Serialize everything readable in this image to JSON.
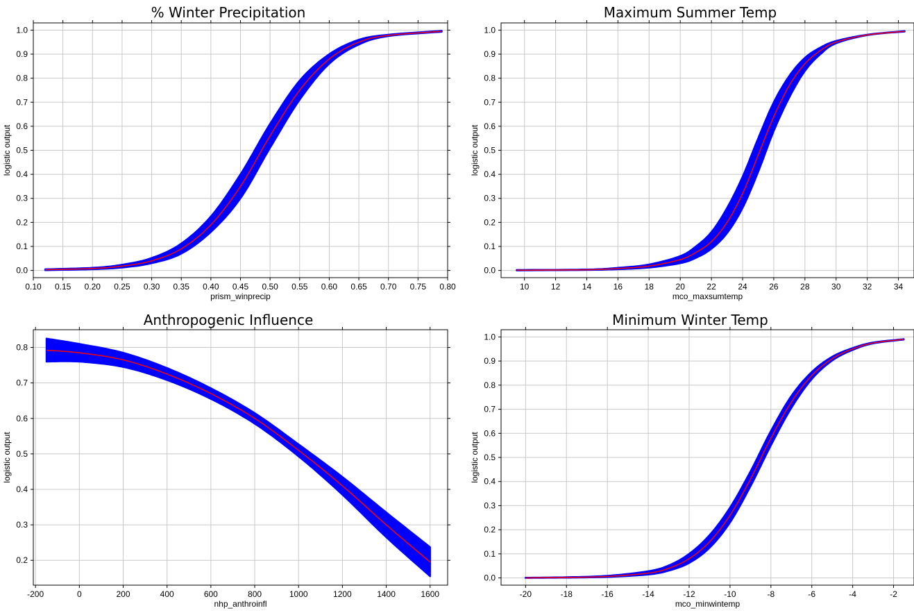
{
  "chart_data": [
    {
      "type": "line",
      "title": "% Winter Precipitation",
      "xlabel": "prism_winprecip",
      "ylabel": "logistic output",
      "xlim": [
        0.1,
        0.8
      ],
      "ylim": [
        -0.03,
        1.03
      ],
      "xticks": [
        "0.10",
        "0.15",
        "0.20",
        "0.25",
        "0.30",
        "0.35",
        "0.40",
        "0.45",
        "0.50",
        "0.55",
        "0.60",
        "0.65",
        "0.70",
        "0.75",
        "0.80"
      ],
      "yticks": [
        "0.0",
        "0.1",
        "0.2",
        "0.3",
        "0.4",
        "0.5",
        "0.6",
        "0.7",
        "0.8",
        "0.9",
        "1.0"
      ],
      "grid": true,
      "series": [
        {
          "role": "mean",
          "color": "#ff0000",
          "x": [
            0.12,
            0.2,
            0.25,
            0.3,
            0.35,
            0.4,
            0.45,
            0.5,
            0.55,
            0.6,
            0.65,
            0.7,
            0.79
          ],
          "y": [
            0.003,
            0.008,
            0.018,
            0.04,
            0.09,
            0.19,
            0.35,
            0.56,
            0.75,
            0.88,
            0.95,
            0.978,
            0.995
          ]
        },
        {
          "role": "band",
          "color": "#0000ff",
          "x": [
            0.12,
            0.2,
            0.25,
            0.3,
            0.35,
            0.4,
            0.45,
            0.5,
            0.55,
            0.6,
            0.65,
            0.7,
            0.79
          ],
          "lower": [
            0.001,
            0.005,
            0.012,
            0.03,
            0.07,
            0.16,
            0.3,
            0.51,
            0.71,
            0.86,
            0.94,
            0.975,
            0.993
          ],
          "upper": [
            0.005,
            0.011,
            0.024,
            0.052,
            0.112,
            0.225,
            0.4,
            0.61,
            0.79,
            0.9,
            0.96,
            0.981,
            0.997
          ]
        }
      ]
    },
    {
      "type": "line",
      "title": "Maximum Summer Temp",
      "xlabel": "mco_maxsumtemp",
      "ylabel": "logistic output",
      "xlim": [
        8.5,
        35.0
      ],
      "ylim": [
        -0.03,
        1.03
      ],
      "xticks": [
        "10",
        "12",
        "14",
        "16",
        "18",
        "20",
        "22",
        "24",
        "26",
        "28",
        "30",
        "32",
        "34"
      ],
      "yticks": [
        "0.0",
        "0.1",
        "0.2",
        "0.3",
        "0.4",
        "0.5",
        "0.6",
        "0.7",
        "0.8",
        "0.9",
        "1.0"
      ],
      "grid": true,
      "series": [
        {
          "role": "mean",
          "color": "#ff0000",
          "x": [
            9.5,
            14,
            16,
            18,
            20,
            21,
            22,
            23,
            24,
            25,
            26,
            27,
            28,
            29,
            30,
            32,
            34.4
          ],
          "y": [
            0.001,
            0.003,
            0.008,
            0.018,
            0.045,
            0.075,
            0.12,
            0.2,
            0.32,
            0.48,
            0.64,
            0.77,
            0.86,
            0.915,
            0.95,
            0.98,
            0.995
          ]
        },
        {
          "role": "band",
          "color": "#0000ff",
          "x": [
            9.5,
            14,
            16,
            18,
            20,
            21,
            22,
            23,
            24,
            25,
            26,
            27,
            28,
            29,
            30,
            32,
            34.4
          ],
          "lower": [
            0.0,
            0.002,
            0.005,
            0.012,
            0.03,
            0.052,
            0.09,
            0.155,
            0.26,
            0.41,
            0.58,
            0.72,
            0.83,
            0.9,
            0.945,
            0.979,
            0.994
          ],
          "upper": [
            0.002,
            0.004,
            0.011,
            0.025,
            0.06,
            0.1,
            0.16,
            0.26,
            0.39,
            0.55,
            0.7,
            0.81,
            0.885,
            0.928,
            0.955,
            0.981,
            0.996
          ]
        }
      ]
    },
    {
      "type": "line",
      "title": "Anthropogenic Influence",
      "xlabel": "nhp_anthroinfl",
      "ylabel": "logistic output",
      "xlim": [
        -210,
        1680
      ],
      "ylim": [
        0.13,
        0.85
      ],
      "xticks": [
        "-200",
        "0",
        "200",
        "400",
        "600",
        "800",
        "1000",
        "1200",
        "1400",
        "1600"
      ],
      "yticks": [
        "0.2",
        "0.3",
        "0.4",
        "0.5",
        "0.6",
        "0.7",
        "0.8"
      ],
      "grid": true,
      "series": [
        {
          "role": "mean",
          "color": "#ff0000",
          "x": [
            -150,
            0,
            200,
            400,
            600,
            800,
            1000,
            1200,
            1400,
            1600
          ],
          "y": [
            0.792,
            0.785,
            0.765,
            0.725,
            0.67,
            0.6,
            0.51,
            0.41,
            0.3,
            0.195
          ]
        },
        {
          "role": "band",
          "color": "#0000ff",
          "x": [
            -150,
            0,
            200,
            400,
            600,
            800,
            1000,
            1200,
            1400,
            1600
          ],
          "lower": [
            0.76,
            0.76,
            0.745,
            0.708,
            0.655,
            0.585,
            0.493,
            0.385,
            0.265,
            0.155
          ],
          "upper": [
            0.825,
            0.81,
            0.785,
            0.742,
            0.685,
            0.615,
            0.527,
            0.435,
            0.335,
            0.237
          ]
        }
      ]
    },
    {
      "type": "line",
      "title": "Minimum Winter Temp",
      "xlabel": "mco_minwintemp",
      "ylabel": "logistic output",
      "xlim": [
        -21.2,
        -1.0
      ],
      "ylim": [
        -0.03,
        1.03
      ],
      "xticks": [
        "-20",
        "-18",
        "-16",
        "-14",
        "-12",
        "-10",
        "-8",
        "-6",
        "-4",
        "-2"
      ],
      "yticks": [
        "0.0",
        "0.1",
        "0.2",
        "0.3",
        "0.4",
        "0.5",
        "0.6",
        "0.7",
        "0.8",
        "0.9",
        "1.0"
      ],
      "grid": true,
      "series": [
        {
          "role": "mean",
          "color": "#ff0000",
          "x": [
            -20,
            -18,
            -16,
            -14,
            -13,
            -12,
            -11,
            -10,
            -9,
            -8,
            -7,
            -6,
            -5,
            -4,
            -3,
            -1.5
          ],
          "y": [
            0.0,
            0.002,
            0.006,
            0.02,
            0.04,
            0.08,
            0.15,
            0.26,
            0.41,
            0.58,
            0.73,
            0.84,
            0.91,
            0.95,
            0.975,
            0.99
          ]
        },
        {
          "role": "band",
          "color": "#0000ff",
          "x": [
            -20,
            -18,
            -16,
            -14,
            -13,
            -12,
            -11,
            -10,
            -9,
            -8,
            -7,
            -6,
            -5,
            -4,
            -3,
            -1.5
          ],
          "lower": [
            0.0,
            0.001,
            0.004,
            0.014,
            0.03,
            0.062,
            0.125,
            0.23,
            0.38,
            0.55,
            0.705,
            0.825,
            0.902,
            0.946,
            0.973,
            0.989
          ],
          "upper": [
            0.001,
            0.003,
            0.009,
            0.028,
            0.052,
            0.1,
            0.178,
            0.292,
            0.442,
            0.61,
            0.755,
            0.855,
            0.918,
            0.954,
            0.977,
            0.991
          ]
        }
      ]
    }
  ]
}
